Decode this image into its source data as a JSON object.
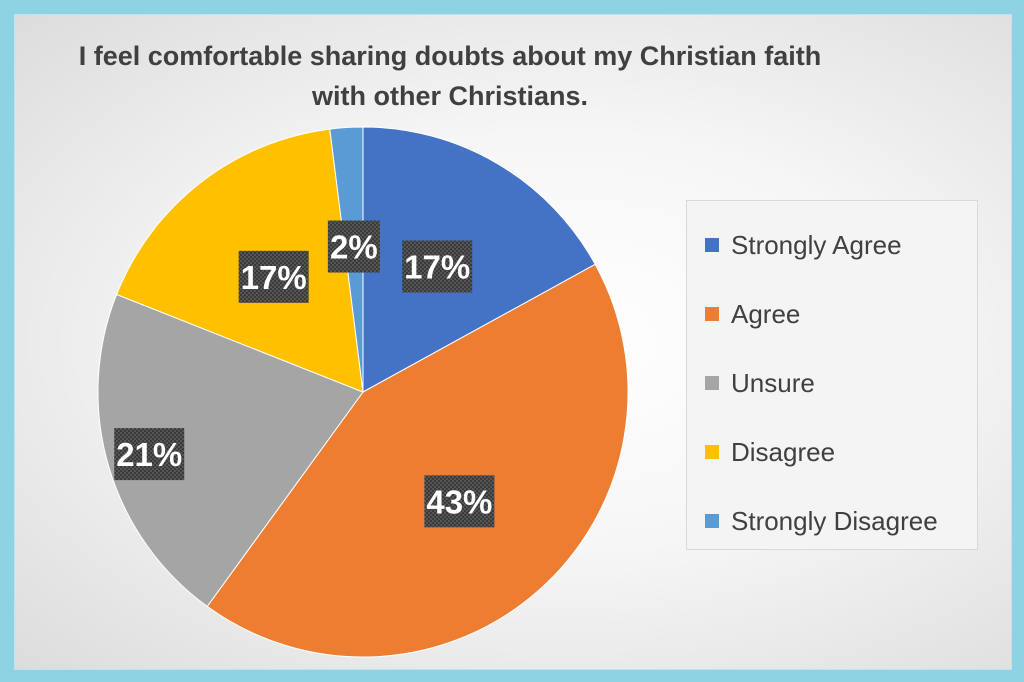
{
  "chart_data": {
    "type": "pie",
    "title": "I feel comfortable sharing doubts about my Christian faith with other Christians.",
    "categories": [
      "Strongly Agree",
      "Agree",
      "Unsure",
      "Disagree",
      "Strongly Disagree"
    ],
    "values": [
      17,
      43,
      21,
      17,
      2
    ],
    "data_labels": [
      "17%",
      "43%",
      "21%",
      "17%",
      "2%"
    ],
    "colors": [
      "#4472c4",
      "#ed7d31",
      "#a5a5a5",
      "#ffc000",
      "#5b9bd5"
    ],
    "legend_position": "right"
  }
}
